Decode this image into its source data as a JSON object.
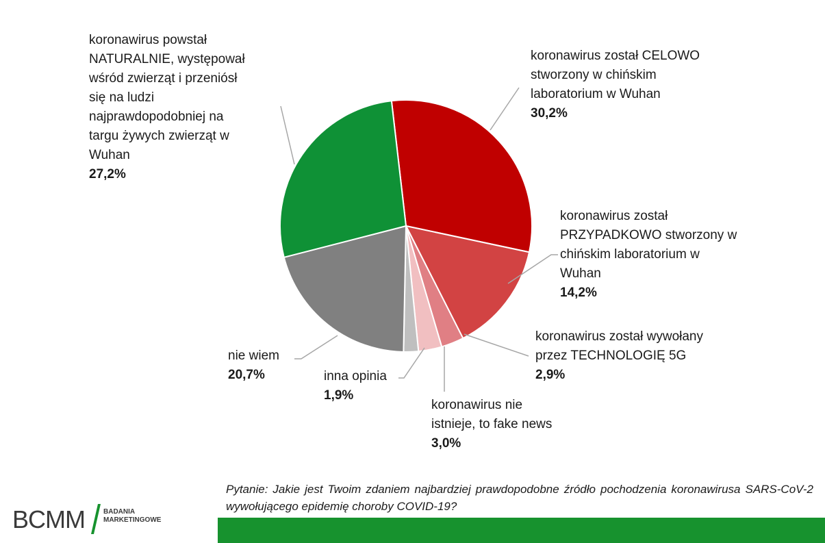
{
  "chart_data": {
    "type": "pie",
    "slices": [
      {
        "label": "koronawirus został CELOWO\nstworzony w chińskim\nlaboratorium w Wuhan",
        "value_label": "30,2%",
        "value": 30.2,
        "color": "#c00000"
      },
      {
        "label": "koronawirus został\nPRZYPADKOWO stworzony w\nchińskim laboratorium w\nWuhan",
        "value_label": "14,2%",
        "value": 14.2,
        "color": "#d24343"
      },
      {
        "label": "koronawirus został wywołany\nprzez TECHNOLOGIĘ 5G",
        "value_label": "2,9%",
        "value": 2.9,
        "color": "#e07f84"
      },
      {
        "label": "koronawirus nie\nistnieje, to fake news",
        "value_label": "3,0%",
        "value": 3.0,
        "color": "#f1bfc1"
      },
      {
        "label": "inna opinia",
        "value_label": "1,9%",
        "value": 1.9,
        "color": "#bfbfbf"
      },
      {
        "label": "nie wiem",
        "value_label": "20,7%",
        "value": 20.7,
        "color": "#808080"
      },
      {
        "label": "koronawirus powstał\nNATURALNIE, występował\nwśród zwierząt i przeniósł\nsię na ludzi\nnajprawdopodobniej na\ntargu żywych zwierząt w\nWuhan",
        "value_label": "27,2%",
        "value": 27.2,
        "color": "#0f9136"
      }
    ]
  },
  "question": "Pytanie: Jakie jest Twoim zdaniem najbardziej prawdopodobne źródło pochodzenia koronawirusa SARS-CoV-2 wywołującego epidemię choroby COVID-19?",
  "logo": {
    "main": "BCMM",
    "sub": "BADANIA\nMARKETINGOWE",
    "slash_color": "#17922e"
  },
  "colors": {
    "footer_bar": "#17922e"
  }
}
